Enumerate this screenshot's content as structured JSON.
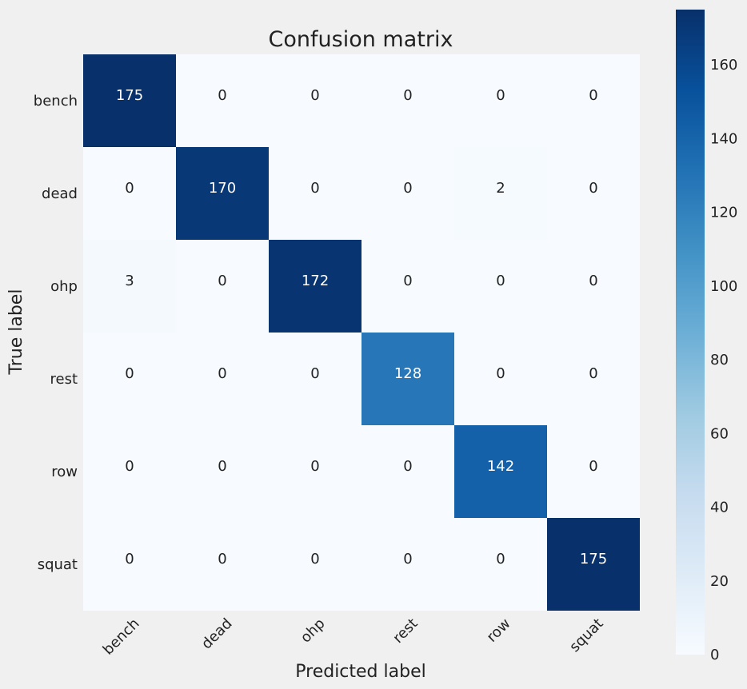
{
  "chart_data": {
    "type": "heatmap",
    "title": "Confusion matrix",
    "xlabel": "Predicted label",
    "ylabel": "True label",
    "x_categories": [
      "bench",
      "dead",
      "ohp",
      "rest",
      "row",
      "squat"
    ],
    "y_categories": [
      "bench",
      "dead",
      "ohp",
      "rest",
      "row",
      "squat"
    ],
    "matrix": [
      [
        175,
        0,
        0,
        0,
        0,
        0
      ],
      [
        0,
        170,
        0,
        0,
        2,
        0
      ],
      [
        3,
        0,
        172,
        0,
        0,
        0
      ],
      [
        0,
        0,
        0,
        128,
        0,
        0
      ],
      [
        0,
        0,
        0,
        0,
        142,
        0
      ],
      [
        0,
        0,
        0,
        0,
        0,
        175
      ]
    ],
    "colorbar": {
      "colormap": "Blues",
      "range": [
        0,
        175
      ],
      "ticks": [
        "0",
        "20",
        "40",
        "60",
        "80",
        "100",
        "120",
        "140",
        "160"
      ]
    },
    "grid": false
  }
}
